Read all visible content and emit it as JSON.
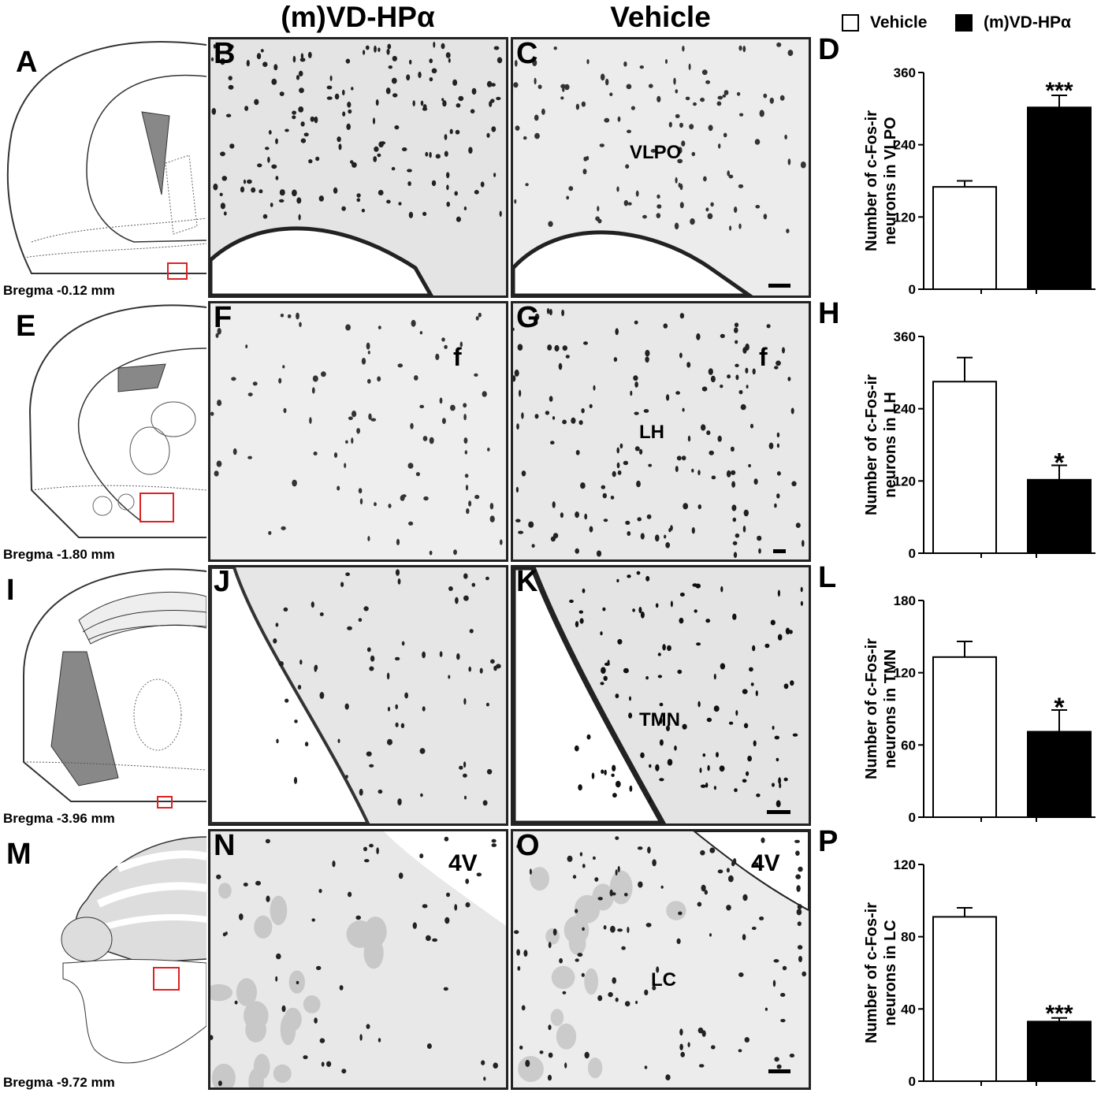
{
  "columns": {
    "left": "(m)VD-HPα",
    "right": "Vehicle"
  },
  "legend": {
    "vehicle": "Vehicle",
    "treated": "(m)VD-HPα"
  },
  "colors": {
    "vehicle_fill": "#ffffff",
    "treated_fill": "#000000",
    "atlas_box": "#dd2222"
  },
  "rows": [
    {
      "atlas_letter": "A",
      "bregma": "Bregma -0.12 mm",
      "left_letter": "B",
      "right_letter": "C",
      "left_label": "",
      "right_label": "VLPO",
      "chart_letter": "D",
      "ylabel": [
        "Number of c-Fos-ir",
        "neurons in VLPO"
      ],
      "sig": "***"
    },
    {
      "atlas_letter": "E",
      "bregma": "Bregma -1.80 mm",
      "left_letter": "F",
      "right_letter": "G",
      "left_label": "f",
      "right_label": "LH",
      "right_label_f": "f",
      "chart_letter": "H",
      "ylabel": [
        "Number of c-Fos-ir",
        "neurons in LH"
      ],
      "sig": "*"
    },
    {
      "atlas_letter": "I",
      "bregma": "Bregma -3.96 mm",
      "left_letter": "J",
      "right_letter": "K",
      "left_label": "",
      "right_label": "TMN",
      "chart_letter": "L",
      "ylabel": [
        "Number of c-Fos-ir",
        "neurons in TMN"
      ],
      "sig": "*"
    },
    {
      "atlas_letter": "M",
      "bregma": "Bregma -9.72 mm",
      "left_letter": "N",
      "right_letter": "O",
      "left_label": "4V",
      "right_label": "LC",
      "right_label_top": "4V",
      "chart_letter": "P",
      "ylabel": [
        "Number of c-Fos-ir",
        "neurons in LC"
      ],
      "sig": "***"
    }
  ],
  "chart_data": [
    {
      "type": "bar",
      "categories": [
        "Vehicle",
        "(m)VD-HPα"
      ],
      "values": [
        170,
        302
      ],
      "errors": [
        10,
        20
      ],
      "yticks": [
        0,
        120,
        240,
        360
      ],
      "ylim": [
        0,
        360
      ],
      "ylabel": "Number of c-Fos-ir neurons in VLPO",
      "annotation": "***"
    },
    {
      "type": "bar",
      "categories": [
        "Vehicle",
        "(m)VD-HPα"
      ],
      "values": [
        285,
        122
      ],
      "errors": [
        40,
        24
      ],
      "yticks": [
        0,
        120,
        240,
        360
      ],
      "ylim": [
        0,
        360
      ],
      "ylabel": "Number of c-Fos-ir neurons in LH",
      "annotation": "*"
    },
    {
      "type": "bar",
      "categories": [
        "Vehicle",
        "(m)VD-HPα"
      ],
      "values": [
        133,
        71
      ],
      "errors": [
        13,
        18
      ],
      "yticks": [
        0,
        60,
        120,
        180
      ],
      "ylim": [
        0,
        180
      ],
      "ylabel": "Number of c-Fos-ir neurons in TMN",
      "annotation": "*"
    },
    {
      "type": "bar",
      "categories": [
        "Vehicle",
        "(m)VD-HPα"
      ],
      "values": [
        91,
        33
      ],
      "errors": [
        5,
        2
      ],
      "yticks": [
        0,
        40,
        80,
        120
      ],
      "ylim": [
        0,
        120
      ],
      "ylabel": "Number of c-Fos-ir neurons in LC",
      "annotation": "***"
    }
  ]
}
